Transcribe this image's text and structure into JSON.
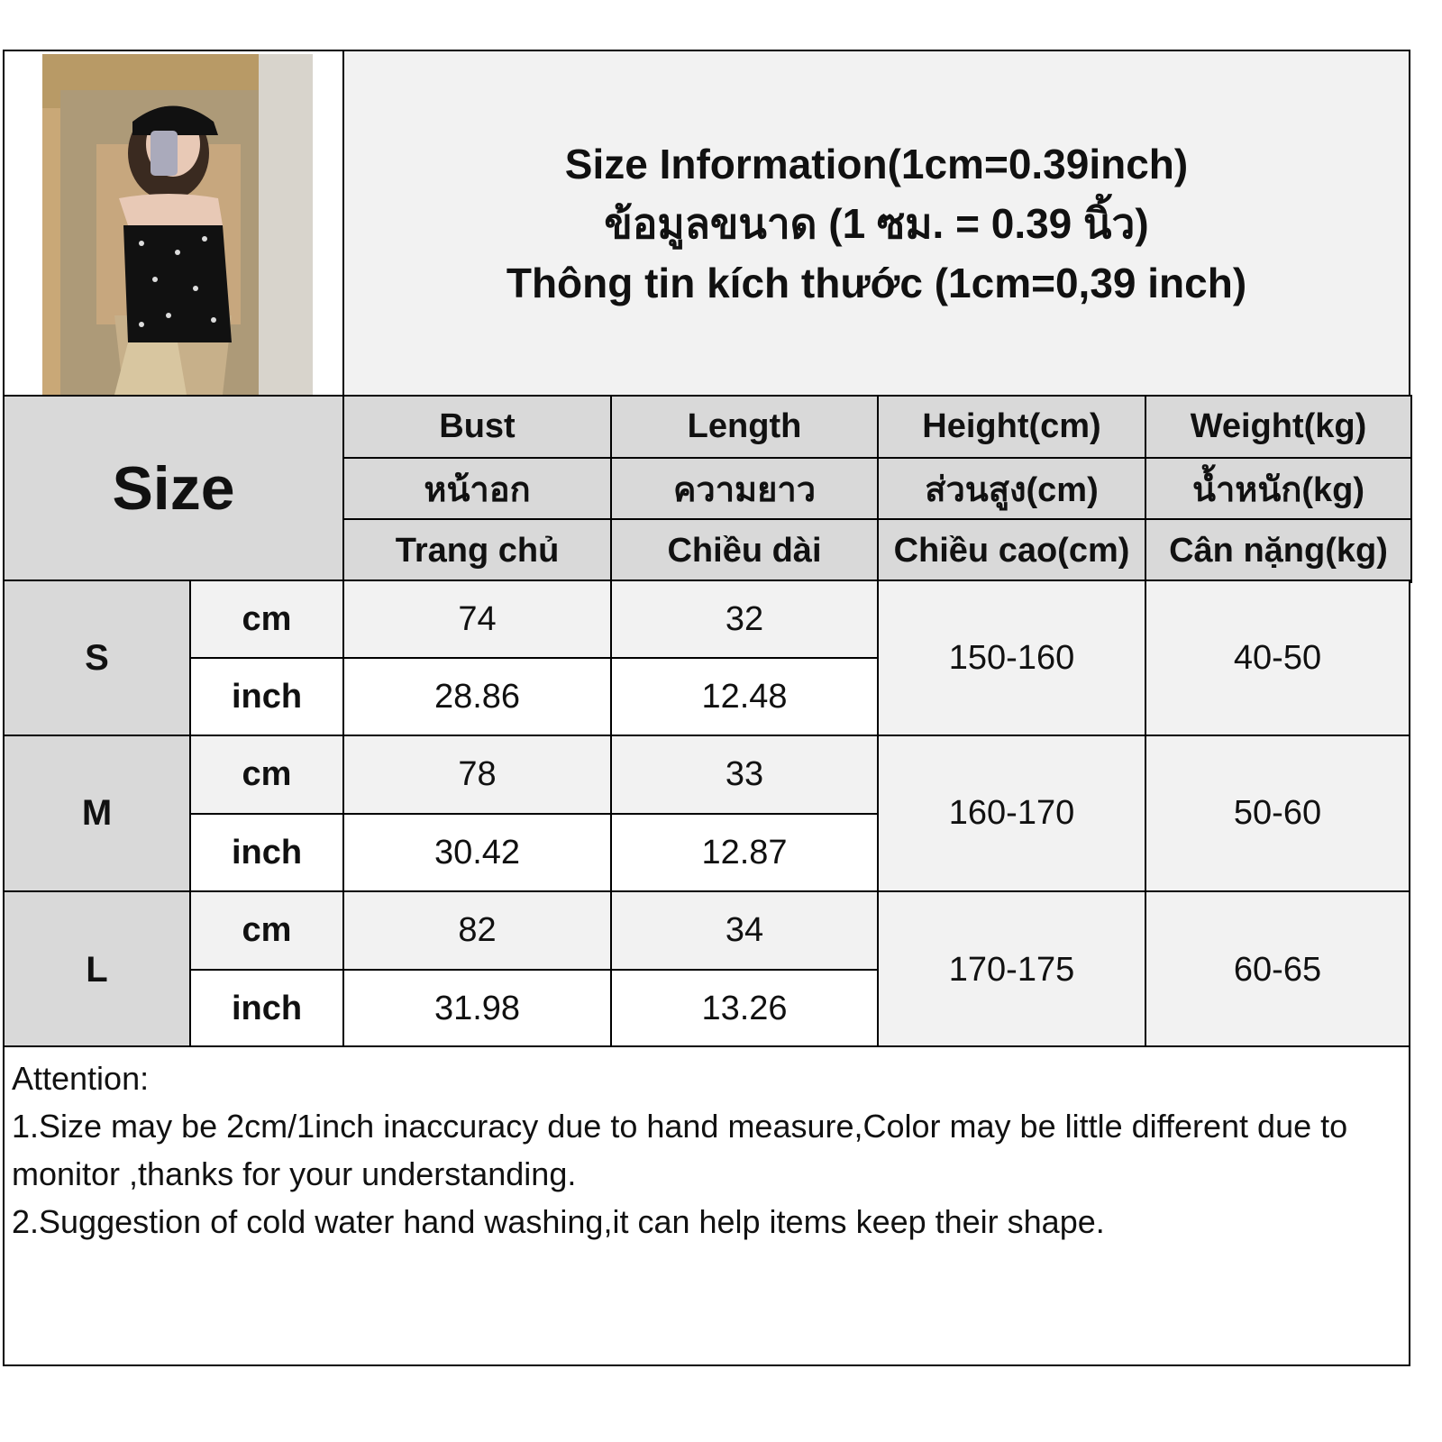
{
  "title": {
    "line1": "Size Information(1cm=0.39inch)",
    "line2": "ข้อมูลขนาด (1 ซม. = 0.39 นิ้ว)",
    "line3": "Thông tin kích thước (1cm=0,39 inch)"
  },
  "header": {
    "size_label": "Size",
    "columns": [
      {
        "en": "Bust",
        "th": "หน้าอก",
        "vi": "Trang chủ"
      },
      {
        "en": "Length",
        "th": "ความยาว",
        "vi": "Chiều dài"
      },
      {
        "en": "Height(cm)",
        "th": "ส่วนสูง(cm)",
        "vi": "Chiều cao(cm)"
      },
      {
        "en": "Weight(kg)",
        "th": "น้ำหนัก(kg)",
        "vi": "Cân nặng(kg)"
      }
    ]
  },
  "rows": [
    {
      "size": "S",
      "cm_label": "cm",
      "inch_label": "inch",
      "bust_cm": "74",
      "length_cm": "32",
      "bust_inch": "28.86",
      "length_inch": "12.48",
      "height": "150-160",
      "weight": "40-50"
    },
    {
      "size": "M",
      "cm_label": "cm",
      "inch_label": "inch",
      "bust_cm": "78",
      "length_cm": "33",
      "bust_inch": "30.42",
      "length_inch": "12.87",
      "height": "160-170",
      "weight": "50-60"
    },
    {
      "size": "L",
      "cm_label": "cm",
      "inch_label": "inch",
      "bust_cm": "82",
      "length_cm": "34",
      "bust_inch": "31.98",
      "length_inch": "13.26",
      "height": "170-175",
      "weight": "60-65"
    }
  ],
  "attention": {
    "heading": "Attention:",
    "note1": "1.Size may be 2cm/1inch inaccuracy due to hand measure,Color may be little different due to monitor ,thanks for your understanding.",
    "note2": "2.Suggestion of cold water hand washing,it can help items keep their shape."
  },
  "colors": {
    "header_gray": "#d9d9d9",
    "light_gray": "#f2f2f2",
    "border": "#000000"
  }
}
